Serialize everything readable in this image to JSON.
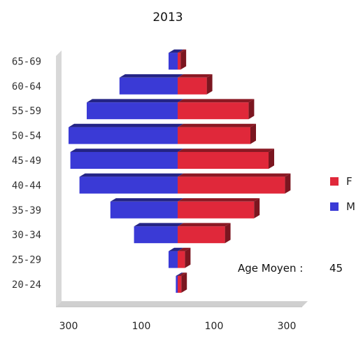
{
  "chart_data": {
    "type": "bar",
    "orientation": "horizontal",
    "layout": "population-pyramid",
    "title": "2013",
    "categories": [
      "20-24",
      "25-29",
      "30-34",
      "35-39",
      "40-44",
      "45-49",
      "50-54",
      "55-59",
      "60-64",
      "65-69"
    ],
    "series": [
      {
        "name": "F",
        "color": "#e0283a",
        "side": "right",
        "values": [
          10,
          20,
          130,
          210,
          295,
          250,
          200,
          195,
          80,
          8
        ]
      },
      {
        "name": "M",
        "color": "#3a3ad6",
        "side": "left",
        "values": [
          5,
          25,
          120,
          185,
          270,
          295,
          300,
          250,
          160,
          25
        ]
      }
    ],
    "xlim": [
      -300,
      300
    ],
    "xticks": [
      {
        "value": -300,
        "label": "300"
      },
      {
        "value": -100,
        "label": "100"
      },
      {
        "value": 100,
        "label": "100"
      },
      {
        "value": 300,
        "label": "300"
      }
    ],
    "legend_position": "right",
    "grid": false,
    "annotation": {
      "label": "Age Moyen :",
      "value": "45"
    }
  }
}
